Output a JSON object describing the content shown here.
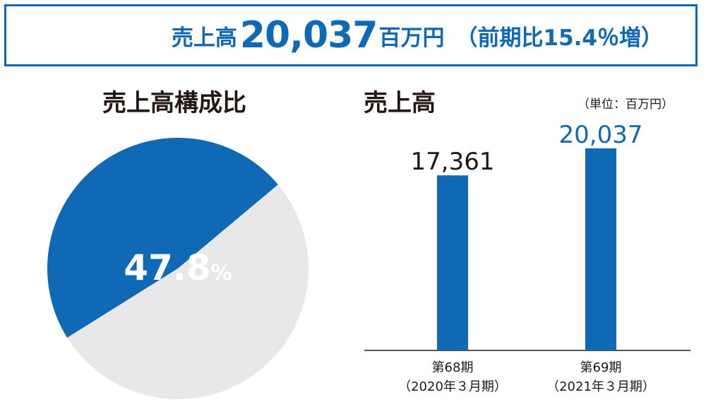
{
  "banner": {
    "label": "売上高",
    "value": "20,037",
    "unit": "百万円",
    "yoy": "（前期比15.4％増）"
  },
  "pie_title": "売上高構成比",
  "bar_title": "売上高",
  "bar_unit": "（単位：百万円）",
  "colors": {
    "accent": "#1069b4",
    "rest": "#e8e8ea",
    "text": "#231815"
  },
  "chart_data": [
    {
      "type": "pie",
      "title": "売上高構成比",
      "slices": [
        {
          "value": 47.8,
          "color": "#1069b4",
          "label": "47.8%"
        },
        {
          "value": 52.2,
          "color": "#e8e8ea",
          "label": ""
        }
      ]
    },
    {
      "type": "bar",
      "title": "売上高",
      "unit": "（単位：百万円）",
      "categories": [
        {
          "line1": "第68期",
          "line2": "（2020年３月期）"
        },
        {
          "line1": "第69期",
          "line2": "（2021年３月期）"
        }
      ],
      "values": [
        17361,
        20037
      ],
      "value_labels": [
        "17,361",
        "20,037"
      ],
      "label_colors": [
        "#231815",
        "#1069b4"
      ],
      "bar_color": "#1069b4",
      "ylim": [
        0,
        20037
      ]
    }
  ]
}
